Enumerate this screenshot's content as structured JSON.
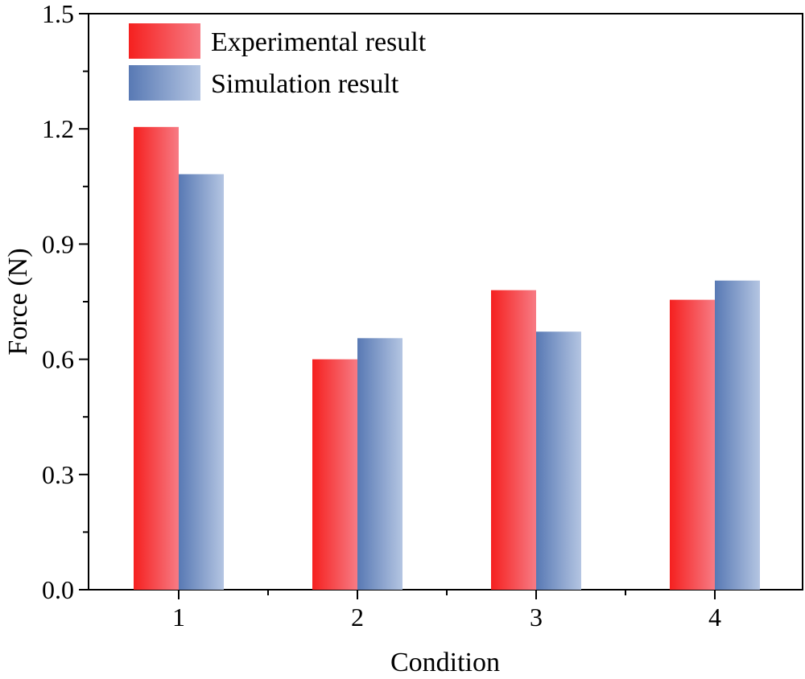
{
  "chart_data": {
    "type": "bar",
    "title": "",
    "xlabel": "Condition",
    "ylabel": "Force (N)",
    "categories": [
      "1",
      "2",
      "3",
      "4"
    ],
    "ylim": [
      0,
      1.5
    ],
    "yticks": [
      "0.0",
      "0.3",
      "0.6",
      "0.9",
      "1.2",
      "1.5"
    ],
    "series": [
      {
        "name": "Experimental result",
        "values": [
          1.205,
          0.6,
          0.78,
          0.755
        ],
        "color_start": "#f5201f",
        "color_end": "#f77b84"
      },
      {
        "name": "Simulation result",
        "values": [
          1.082,
          0.655,
          0.672,
          0.805
        ],
        "color_start": "#5879b4",
        "color_end": "#b4c5e2"
      }
    ],
    "legend_position": "top-left",
    "grid": false
  }
}
